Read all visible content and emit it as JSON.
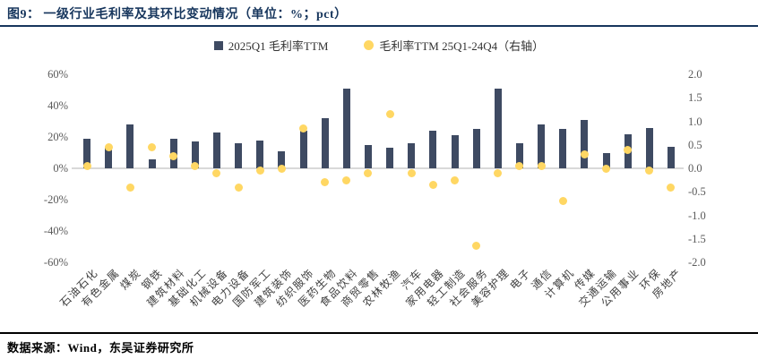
{
  "title": "图9：  一级行业毛利率及其环比变动情况（单位：%；pct）",
  "source": "数据来源：Wind，东吴证券研究所",
  "colors": {
    "bar": "#3e4a62",
    "dot": "#ffd763",
    "title_navy": "#17365d",
    "axis_text": "#595959",
    "zero_line": "#d9d9d9"
  },
  "legend": {
    "bar_label": "2025Q1 毛利率TTM",
    "dot_label": "毛利率TTM 25Q1-24Q4（右轴）"
  },
  "chart_data": {
    "type": "bar",
    "subtype": "bar-with-scatter-dual-axis",
    "title": "一级行业毛利率及其环比变动情况",
    "units": "%; pct",
    "categories": [
      "石油石化",
      "有色金属",
      "煤炭",
      "钢铁",
      "建筑材料",
      "基础化工",
      "机械设备",
      "电力设备",
      "国防军工",
      "建筑装饰",
      "纺织服饰",
      "医药生物",
      "食品饮料",
      "商贸零售",
      "农林牧渔",
      "汽车",
      "家用电器",
      "轻工制造",
      "社会服务",
      "美容护理",
      "电子",
      "通信",
      "计算机",
      "传媒",
      "交通运输",
      "公用事业",
      "环保",
      "房地产"
    ],
    "series": [
      {
        "name": "2025Q1 毛利率TTM",
        "type": "bar",
        "axis": "left",
        "values": [
          19,
          13,
          28,
          6,
          19,
          17,
          23,
          16,
          18,
          11,
          24,
          32,
          51,
          15,
          13,
          16,
          24,
          21,
          25,
          51,
          16,
          28,
          25,
          31,
          10,
          22,
          26,
          14
        ]
      },
      {
        "name": "毛利率TTM 25Q1-24Q4（右轴）",
        "type": "scatter",
        "axis": "right",
        "values": [
          0.05,
          0.45,
          -0.4,
          0.45,
          0.25,
          0.05,
          -0.1,
          -0.4,
          -0.05,
          0.0,
          0.85,
          -0.3,
          -0.25,
          -0.1,
          1.15,
          -0.1,
          -0.35,
          -0.25,
          -1.65,
          -0.1,
          0.05,
          0.05,
          -0.7,
          0.3,
          0.0,
          0.4,
          -0.05,
          -0.4
        ]
      }
    ],
    "left_axis": {
      "tick_labels": [
        "60%",
        "40%",
        "20%",
        "0%",
        "-20%",
        "-40%",
        "-60%"
      ],
      "tick_values": [
        60,
        40,
        20,
        0,
        -20,
        -40,
        -60
      ],
      "min": -60,
      "max": 60
    },
    "right_axis": {
      "tick_labels": [
        "2.0",
        "1.5",
        "1.0",
        "0.5",
        "0.0",
        "-0.5",
        "-1.0",
        "-1.5",
        "-2.0"
      ],
      "tick_values": [
        2.0,
        1.5,
        1.0,
        0.5,
        0.0,
        -0.5,
        -1.0,
        -1.5,
        -2.0
      ],
      "min": -2.0,
      "max": 2.0
    },
    "grid": "zero-line-only",
    "legend_position": "top-center"
  }
}
